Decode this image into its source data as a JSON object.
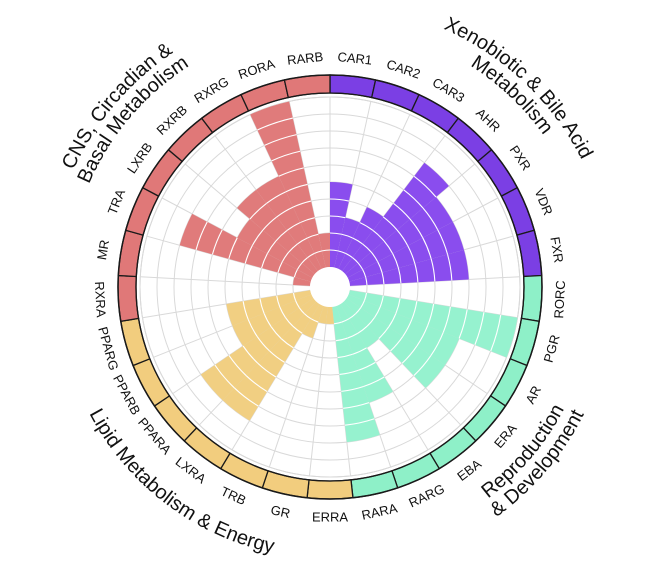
{
  "chart_data": {
    "type": "radial-bar",
    "title": "",
    "max_value": 10,
    "grid_steps": 10,
    "groups": [
      {
        "id": "xeno",
        "label_lines": [
          "Xenobiotic & Bile Acid",
          "Metabolism"
        ],
        "color": "#7b3fe4",
        "bar_color": "#8a4dee"
      },
      {
        "id": "repro",
        "label_lines": [
          "Reproduction",
          "& Development"
        ],
        "color": "#8ef0c8",
        "bar_color": "#96f2cf"
      },
      {
        "id": "lipid",
        "label_lines": [
          "Lipid Metabolism & Energy"
        ],
        "color": "#f2cd7e",
        "bar_color": "#f1cf82"
      },
      {
        "id": "cns",
        "label_lines": [
          "CNS, Circadian &",
          "Basal Metabolism"
        ],
        "color": "#e07878",
        "bar_color": "#e07b7b"
      }
    ],
    "receptors": [
      {
        "name": "CAR1",
        "group": "xeno",
        "value": 5
      },
      {
        "name": "CAR2",
        "group": "xeno",
        "value": 3
      },
      {
        "name": "CAR3",
        "group": "xeno",
        "value": 4
      },
      {
        "name": "AHR",
        "group": "xeno",
        "value": 8
      },
      {
        "name": "PXR",
        "group": "xeno",
        "value": 7
      },
      {
        "name": "VDR",
        "group": "xeno",
        "value": 7
      },
      {
        "name": "FXR",
        "group": "xeno",
        "value": 7
      },
      {
        "name": "RORC",
        "group": "repro",
        "value": 0
      },
      {
        "name": "PGR",
        "group": "repro",
        "value": 10
      },
      {
        "name": "AR",
        "group": "repro",
        "value": 7
      },
      {
        "name": "ERA",
        "group": "repro",
        "value": 7
      },
      {
        "name": "EBA",
        "group": "repro",
        "value": 3
      },
      {
        "name": "RARG",
        "group": "repro",
        "value": 6
      },
      {
        "name": "RARA",
        "group": "repro",
        "value": 8
      },
      {
        "name": "ERRA",
        "group": "lipid",
        "value": 1
      },
      {
        "name": "GR",
        "group": "lipid",
        "value": 1
      },
      {
        "name": "TRB",
        "group": "lipid",
        "value": 2
      },
      {
        "name": "LXRA",
        "group": "lipid",
        "value": 8
      },
      {
        "name": "PPARA",
        "group": "lipid",
        "value": 8
      },
      {
        "name": "PPARB",
        "group": "lipid",
        "value": 5
      },
      {
        "name": "PPARG",
        "group": "lipid",
        "value": 5
      },
      {
        "name": "RXRA",
        "group": "cns",
        "value": 0
      },
      {
        "name": "MR",
        "group": "cns",
        "value": 1
      },
      {
        "name": "TRA",
        "group": "cns",
        "value": 8
      },
      {
        "name": "LXRB",
        "group": "cns",
        "value": 5
      },
      {
        "name": "RXRB",
        "group": "cns",
        "value": 6
      },
      {
        "name": "RXRG",
        "group": "cns",
        "value": 6
      },
      {
        "name": "RORA",
        "group": "cns",
        "value": 10
      },
      {
        "name": "RARB",
        "group": "cns",
        "value": 2
      }
    ]
  }
}
